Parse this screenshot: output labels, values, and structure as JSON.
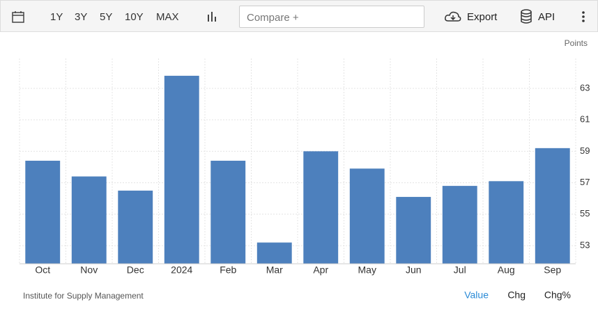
{
  "toolbar": {
    "ranges": [
      "1Y",
      "3Y",
      "5Y",
      "10Y",
      "MAX"
    ],
    "compare_placeholder": "Compare +",
    "export": "Export",
    "api": "API"
  },
  "chart_data": {
    "type": "bar",
    "y_label": "Points",
    "categories": [
      "Oct",
      "Nov",
      "Dec",
      "2024",
      "Feb",
      "Mar",
      "Apr",
      "May",
      "Jun",
      "Jul",
      "Aug",
      "Sep"
    ],
    "values": [
      58.4,
      57.4,
      56.5,
      63.8,
      58.4,
      53.2,
      59.0,
      57.9,
      56.1,
      56.8,
      57.1,
      59.2
    ],
    "color": "#4d80bd",
    "ylim": [
      51.85,
      64.9
    ],
    "yticks": [
      53,
      55,
      57,
      59,
      61,
      63
    ],
    "grid": true,
    "source": "Institute for Supply Management",
    "views": [
      "Value",
      "Chg",
      "Chg%"
    ]
  }
}
